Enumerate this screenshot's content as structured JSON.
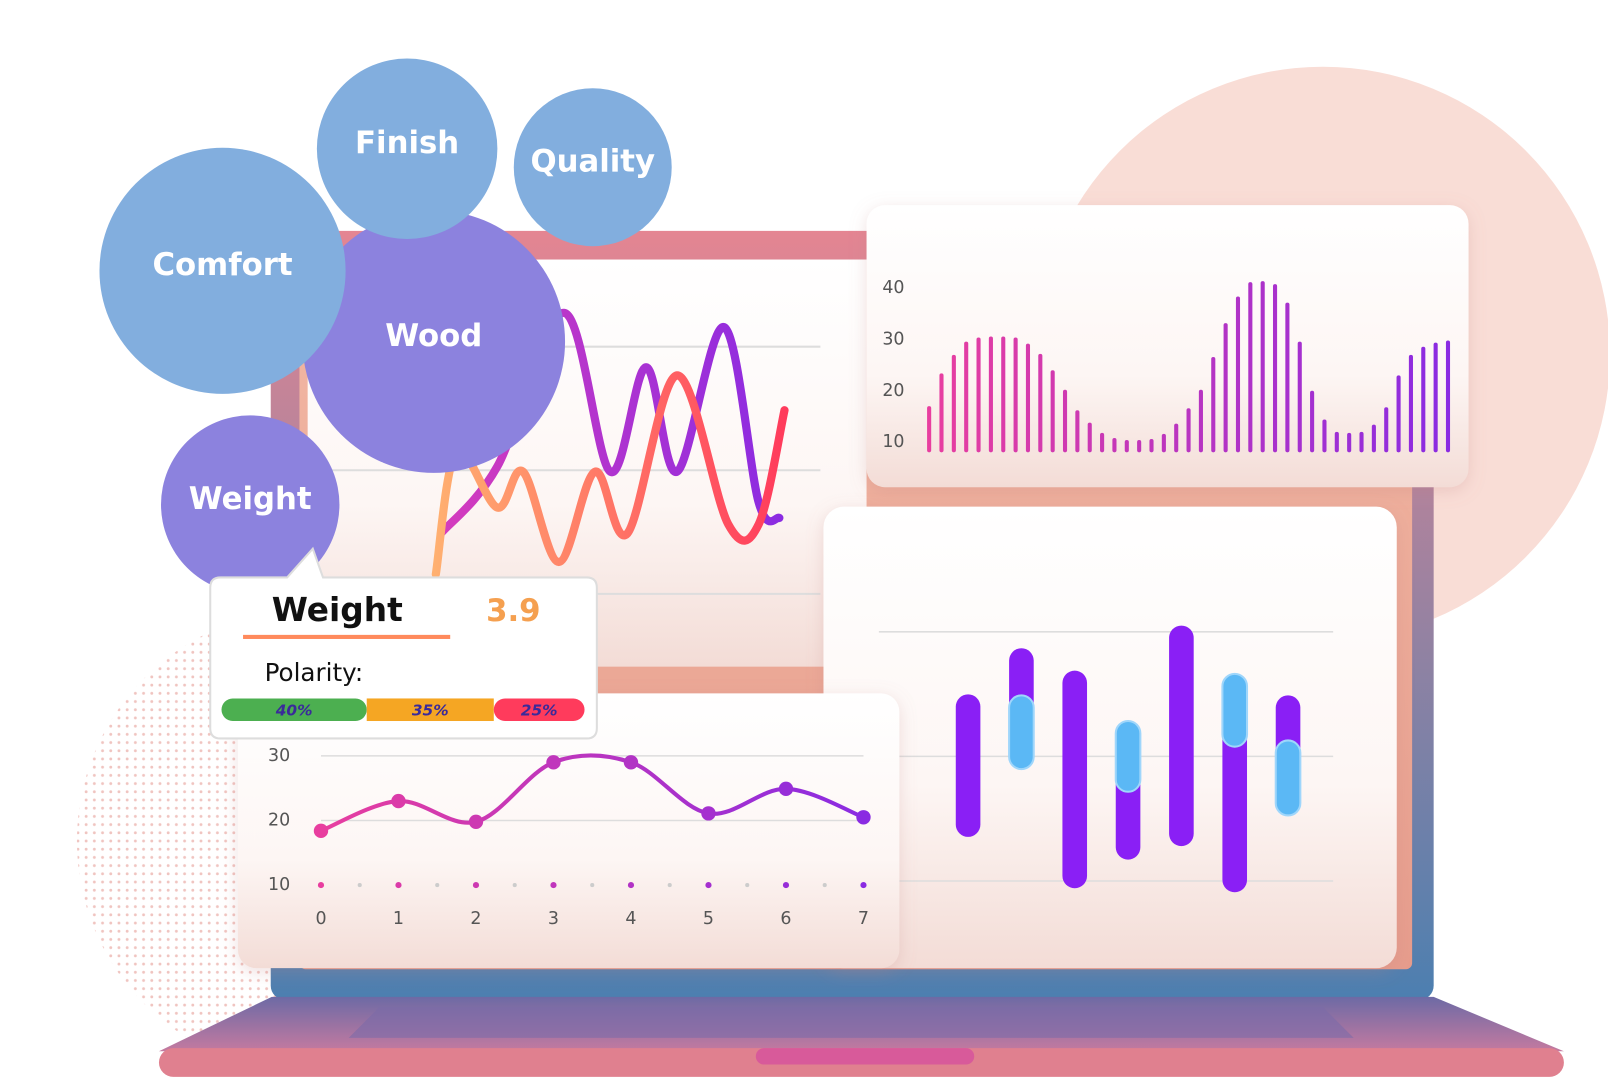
{
  "bubbles": [
    "Finish",
    "Quality",
    "Comfort",
    "Wood",
    "Weight"
  ],
  "tooltip": {
    "title": "Weight",
    "score": 3.9,
    "polarity_label": "Polarity:",
    "segments": {
      "values": [
        40,
        35,
        25
      ],
      "value_labels": [
        "40%",
        "35%",
        "25%"
      ],
      "colors": [
        "#4caf50",
        "#f5a623",
        "#ff3b5c"
      ]
    }
  },
  "chart_data": [
    {
      "type": "line",
      "xlim": [
        -2,
        100
      ],
      "ylim": [
        0,
        135
      ],
      "gridlines": [
        0,
        50,
        100
      ],
      "series": [
        {
          "colors": [
            "#d63cbc",
            "#8a2be2"
          ],
          "x": [
            0,
            16.4,
            35.8,
            49.3,
            59.7,
            68.7,
            82.4,
            92.5,
            98.5
          ],
          "values": [
            24.5,
            51.5,
            113.7,
            49.4,
            91.7,
            49.4,
            107.9,
            36.9,
            30.7
          ]
        },
        {
          "colors": [
            "#ffb070",
            "#ff3b5c"
          ],
          "x": [
            -1.5,
            4.5,
            16.4,
            23.9,
            34.3,
            44.8,
            54.3,
            68.7,
            83.6,
            92.5,
            100
          ],
          "values": [
            7.9,
            57.7,
            34.9,
            49.4,
            12.9,
            49.4,
            24.5,
            88.4,
            28.2,
            28.2,
            74.3
          ]
        }
      ]
    },
    {
      "type": "bar",
      "ylim": [
        8,
        44
      ],
      "yticks": [
        10,
        20,
        30,
        40
      ],
      "colors": [
        "#e83e9f",
        "#8a2be2"
      ],
      "values": [
        17,
        23.4,
        27,
        29.6,
        30.4,
        30.6,
        30.6,
        30.4,
        29.2,
        27.2,
        24,
        20.2,
        16.2,
        13.8,
        11.8,
        10.8,
        10.4,
        10.4,
        10.6,
        11.6,
        13.6,
        16.6,
        20.2,
        26.6,
        33.2,
        38.4,
        41.2,
        41.4,
        40.8,
        37.2,
        29.6,
        20,
        14.4,
        12,
        11.8,
        12,
        13.4,
        16.8,
        23,
        27,
        28.6,
        29.4,
        29.8
      ]
    },
    {
      "type": "dotline",
      "x": [
        0,
        1,
        2,
        3,
        4,
        5,
        6,
        7
      ],
      "values": [
        18.4,
        23,
        19.8,
        29,
        29,
        21.1,
        24.9,
        20.5
      ],
      "xlim": [
        0,
        7
      ],
      "ylim": [
        8,
        32
      ],
      "xticks": [
        0,
        1,
        2,
        3,
        4,
        5,
        6,
        7
      ],
      "yticks": [
        10,
        20,
        30
      ],
      "grid": true,
      "colors": [
        "#e83e9f",
        "#8a2be2"
      ]
    },
    {
      "type": "range",
      "ylim": [
        -10,
        105
      ],
      "gridlines": [
        0,
        50,
        100
      ],
      "color": "#8a1ff5",
      "overlay_color": "#5bb8f5",
      "lows": [
        17.7,
        44.9,
        -2.9,
        8.6,
        14,
        -4.5,
        26.3
      ],
      "highs": [
        74.9,
        93.4,
        84.4,
        64.2,
        102.5,
        83.1,
        74.5
      ],
      "overlay_lows": [
        null,
        44.9,
        null,
        35.8,
        null,
        53.9,
        26.3
      ],
      "overlay_highs": [
        null,
        74.5,
        null,
        64.2,
        null,
        83.1,
        56.4
      ]
    }
  ]
}
